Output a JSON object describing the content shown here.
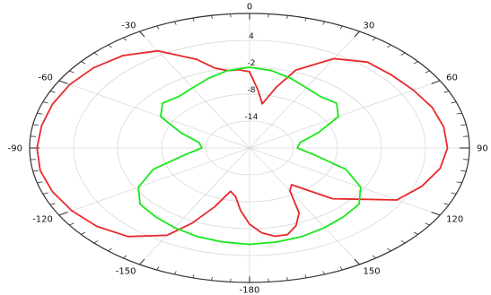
{
  "chart_data": {
    "type": "polar-line",
    "angle_tick_labels": [
      "0",
      "30",
      "60",
      "90",
      "120",
      "150",
      "-180",
      "-150",
      "-120",
      "-90",
      "-60",
      "-30"
    ],
    "angle_ticks_deg": [
      0,
      30,
      60,
      90,
      120,
      150,
      180,
      210,
      240,
      270,
      300,
      330
    ],
    "radial_tick_labels": [
      "4",
      "-2",
      "-8",
      "-14"
    ],
    "radial_ticks": [
      4,
      -2,
      -8,
      -14
    ],
    "radial_range": [
      -20,
      10
    ],
    "grid": true,
    "series": [
      {
        "color": "#e8282b",
        "angle_deg": [
          0,
          5,
          10,
          15,
          20,
          30,
          40,
          50,
          60,
          70,
          80,
          90,
          100,
          110,
          120,
          135,
          145,
          150,
          155,
          160,
          165,
          170,
          175,
          180,
          185,
          190,
          195,
          200,
          205,
          210,
          220,
          230,
          240,
          250,
          260,
          270,
          280,
          290,
          300,
          310,
          320,
          330,
          340,
          345,
          350,
          355
        ],
        "values": [
          -3,
          -7,
          -10,
          -6,
          -1.5,
          3,
          5,
          5.3,
          5.8,
          6.5,
          6.9,
          7,
          6.4,
          5,
          3.2,
          -4,
          -10,
          -9,
          -4,
          -1.5,
          0,
          0,
          -1,
          -3,
          -6,
          -9,
          -10,
          -6,
          -1.5,
          2.5,
          5.8,
          7.2,
          8,
          8.6,
          9,
          9,
          8.8,
          8.6,
          8.3,
          7.8,
          6.9,
          5,
          1,
          -1.5,
          -2.5,
          -2.5
        ]
      },
      {
        "color": "#18e81a",
        "angle_deg": [
          0,
          10,
          20,
          30,
          40,
          50,
          60,
          70,
          80,
          90,
          100,
          110,
          120,
          130,
          140,
          150,
          160,
          170,
          180,
          190,
          200,
          210,
          220,
          230,
          240,
          250,
          260,
          270,
          280,
          290,
          300,
          310,
          320,
          330,
          340,
          350
        ],
        "values": [
          -2,
          -2.5,
          -3.5,
          -4.5,
          -5,
          -4.5,
          -6,
          -10,
          -13,
          -13.5,
          -11,
          -6,
          -2.5,
          -0.5,
          0,
          0.5,
          1,
          1.3,
          1.5,
          1.3,
          1,
          0.5,
          0,
          -0.5,
          -2.5,
          -6,
          -11,
          -13.5,
          -13,
          -10,
          -6,
          -4.5,
          -5,
          -4.5,
          -3.5,
          -2.5
        ]
      }
    ]
  }
}
